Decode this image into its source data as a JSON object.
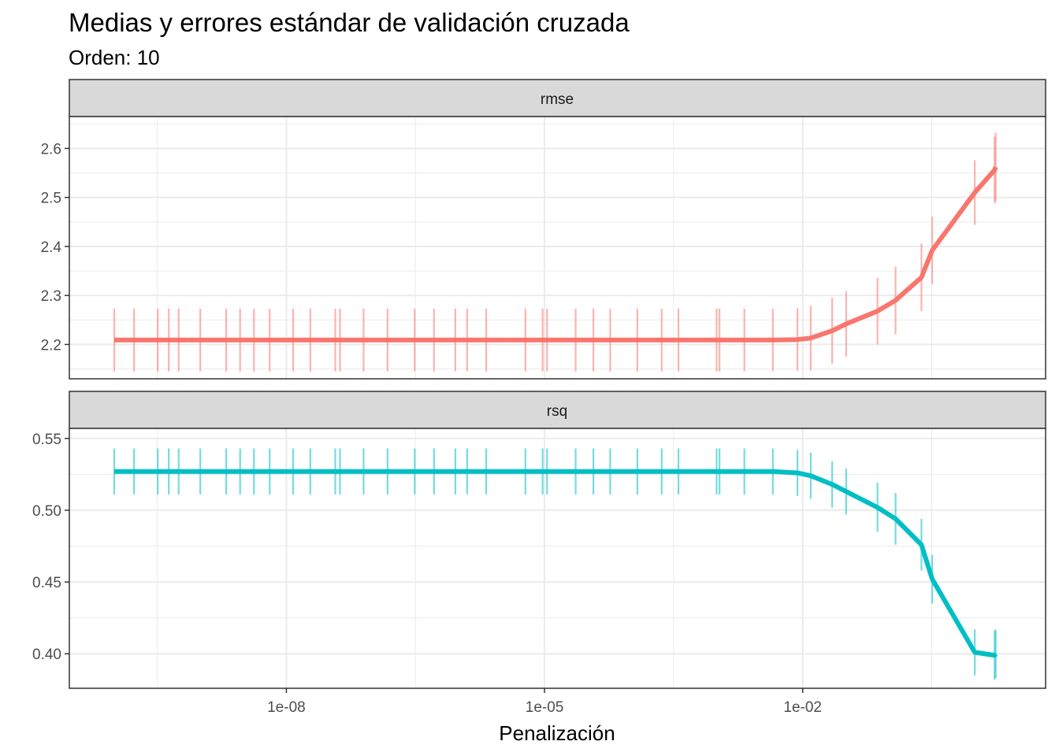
{
  "title": "Medias y errores estándar de validación cruzada",
  "subtitle": "Orden: 10",
  "chart_data": {
    "type": "line",
    "xlabel": "Penalización",
    "x_scale": "log10",
    "xlim": [
      1e-10,
      2
    ],
    "x_ticks": [
      1e-08,
      1e-05,
      0.01
    ],
    "x_tick_labels": [
      "1e-08",
      "1e-05",
      "1e-02"
    ],
    "x": [
      1e-10,
      1.7e-10,
      3.2e-10,
      4.3e-10,
      5.6e-10,
      1e-09,
      2e-09,
      2.9e-09,
      4.2e-09,
      6.4e-09,
      1.2e-08,
      1.9e-08,
      3.7e-08,
      4.2e-08,
      7.9e-08,
      1.5e-07,
      3.1e-07,
      5.2e-07,
      9.2e-07,
      1.26e-06,
      2.1e-06,
      6e-06,
      9.5e-06,
      1.07e-05,
      2.3e-05,
      3.7e-05,
      5.8e-05,
      0.00012,
      0.00023,
      0.00036,
      0.001,
      0.00108,
      0.0021,
      0.0045,
      0.0087,
      0.0124,
      0.022,
      0.032,
      0.074,
      0.12,
      0.24,
      0.32,
      1.0,
      1.7,
      1.75
    ],
    "facets": [
      {
        "name": "rmse",
        "color": "#F8766D",
        "ylim": [
          2.13,
          2.665
        ],
        "y_ticks": [
          2.2,
          2.3,
          2.4,
          2.5,
          2.6
        ],
        "y_tick_labels": [
          "2.2",
          "2.3",
          "2.4",
          "2.5",
          "2.6"
        ],
        "mean": [
          2.209,
          2.209,
          2.209,
          2.209,
          2.209,
          2.209,
          2.209,
          2.209,
          2.209,
          2.209,
          2.209,
          2.209,
          2.209,
          2.209,
          2.209,
          2.209,
          2.209,
          2.209,
          2.209,
          2.209,
          2.209,
          2.209,
          2.209,
          2.209,
          2.209,
          2.209,
          2.209,
          2.209,
          2.209,
          2.209,
          2.209,
          2.209,
          2.209,
          2.209,
          2.21,
          2.213,
          2.228,
          2.242,
          2.268,
          2.29,
          2.337,
          2.392,
          2.51,
          2.556,
          2.562
        ],
        "std_err": [
          0.064,
          0.064,
          0.064,
          0.064,
          0.064,
          0.064,
          0.064,
          0.064,
          0.064,
          0.064,
          0.064,
          0.064,
          0.064,
          0.064,
          0.064,
          0.064,
          0.064,
          0.064,
          0.064,
          0.064,
          0.064,
          0.064,
          0.064,
          0.064,
          0.064,
          0.064,
          0.064,
          0.064,
          0.064,
          0.064,
          0.064,
          0.064,
          0.064,
          0.064,
          0.064,
          0.066,
          0.067,
          0.067,
          0.068,
          0.069,
          0.069,
          0.069,
          0.066,
          0.068,
          0.07
        ]
      },
      {
        "name": "rsq",
        "color": "#00BFC4",
        "ylim": [
          0.376,
          0.557
        ],
        "y_ticks": [
          0.4,
          0.45,
          0.5,
          0.55
        ],
        "y_tick_labels": [
          "0.40",
          "0.45",
          "0.50",
          "0.55"
        ],
        "mean": [
          0.527,
          0.527,
          0.527,
          0.527,
          0.527,
          0.527,
          0.527,
          0.527,
          0.527,
          0.527,
          0.527,
          0.527,
          0.527,
          0.527,
          0.527,
          0.527,
          0.527,
          0.527,
          0.527,
          0.527,
          0.527,
          0.527,
          0.527,
          0.527,
          0.527,
          0.527,
          0.527,
          0.527,
          0.527,
          0.527,
          0.527,
          0.527,
          0.527,
          0.527,
          0.526,
          0.524,
          0.518,
          0.513,
          0.502,
          0.494,
          0.476,
          0.452,
          0.401,
          0.399,
          0.4
        ],
        "std_err": [
          0.016,
          0.016,
          0.016,
          0.016,
          0.016,
          0.016,
          0.016,
          0.016,
          0.016,
          0.016,
          0.016,
          0.016,
          0.016,
          0.016,
          0.016,
          0.016,
          0.016,
          0.016,
          0.016,
          0.016,
          0.016,
          0.016,
          0.016,
          0.016,
          0.016,
          0.016,
          0.016,
          0.016,
          0.016,
          0.016,
          0.016,
          0.016,
          0.016,
          0.016,
          0.016,
          0.016,
          0.016,
          0.016,
          0.017,
          0.018,
          0.018,
          0.017,
          0.016,
          0.017,
          0.017
        ]
      }
    ]
  }
}
